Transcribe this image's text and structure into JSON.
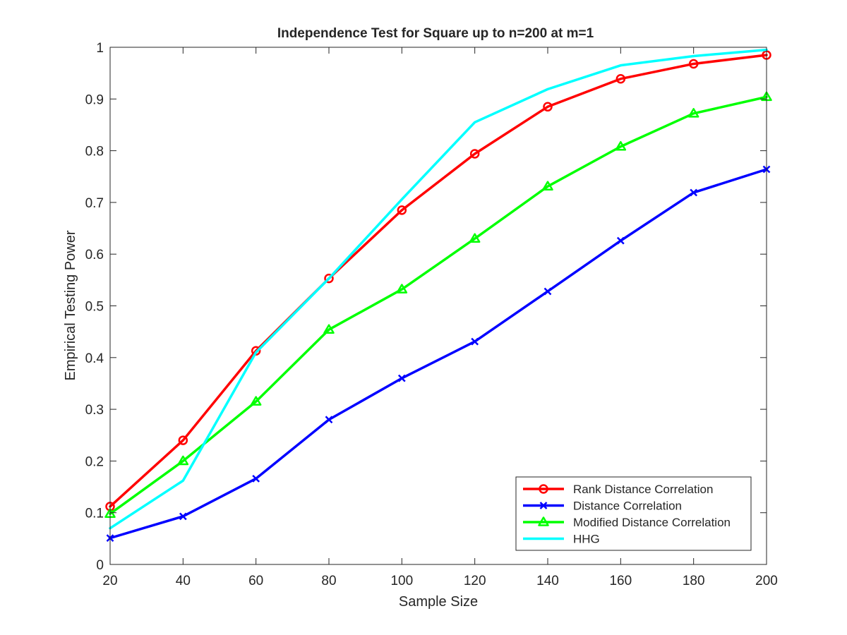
{
  "chart_data": {
    "type": "line",
    "title": "Independence Test for Square up to n=200 at m=1",
    "xlabel": "Sample Size",
    "ylabel": "Empirical Testing Power",
    "xlim": [
      20,
      200
    ],
    "ylim": [
      0,
      1
    ],
    "xticks": [
      20,
      40,
      60,
      80,
      100,
      120,
      140,
      160,
      180,
      200
    ],
    "yticks": [
      0,
      0.1,
      0.2,
      0.3,
      0.4,
      0.5,
      0.6,
      0.7,
      0.8,
      0.9,
      1
    ],
    "xtick_labels": [
      "20",
      "40",
      "60",
      "80",
      "100",
      "120",
      "140",
      "160",
      "180",
      "200"
    ],
    "ytick_labels": [
      "0",
      "0.1",
      "0.2",
      "0.3",
      "0.4",
      "0.5",
      "0.6",
      "0.7",
      "0.8",
      "0.9",
      "1"
    ],
    "grid": false,
    "legend_position": "bottom-right",
    "x": [
      20,
      40,
      60,
      80,
      100,
      120,
      140,
      160,
      180,
      200
    ],
    "series": [
      {
        "name": "Rank Distance Correlation",
        "color": "#ff0000",
        "marker": "circle",
        "values": [
          0.112,
          0.24,
          0.413,
          0.553,
          0.685,
          0.794,
          0.885,
          0.939,
          0.968,
          0.985
        ]
      },
      {
        "name": "Distance Correlation",
        "color": "#0000ff",
        "marker": "x",
        "values": [
          0.051,
          0.093,
          0.166,
          0.28,
          0.36,
          0.431,
          0.528,
          0.626,
          0.719,
          0.764
        ]
      },
      {
        "name": "Modified Distance Correlation",
        "color": "#00ff00",
        "marker": "triangle",
        "values": [
          0.098,
          0.2,
          0.315,
          0.454,
          0.532,
          0.63,
          0.731,
          0.808,
          0.872,
          0.904
        ]
      },
      {
        "name": "HHG",
        "color": "#00ffff",
        "marker": "none",
        "values": [
          0.07,
          0.162,
          0.41,
          0.553,
          0.706,
          0.855,
          0.919,
          0.965,
          0.983,
          0.995
        ]
      }
    ]
  }
}
